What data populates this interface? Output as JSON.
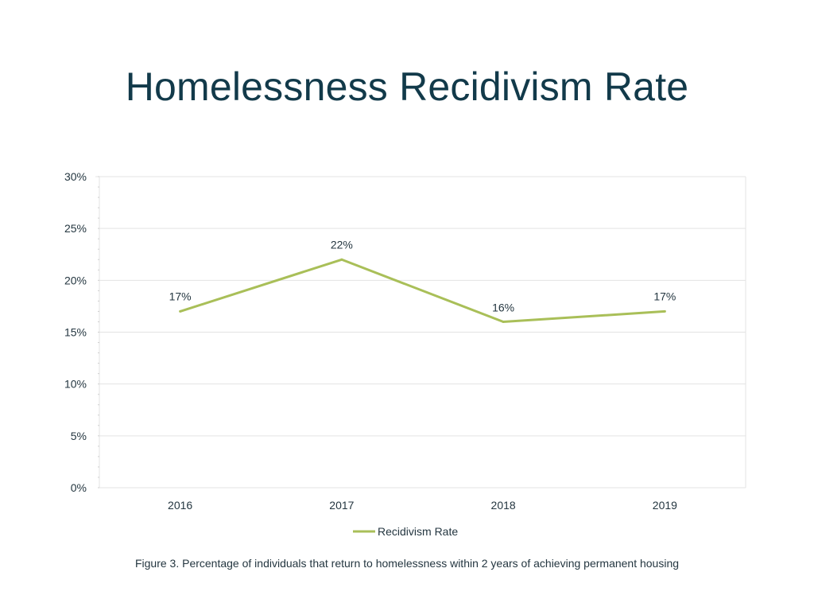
{
  "slide": {
    "title": "Homelessness Recidivism Rate",
    "caption": "Figure 3.  Percentage of individuals that return to homelessness within 2 years of achieving permanent housing"
  },
  "chart_data": {
    "type": "line",
    "categories": [
      "2016",
      "2017",
      "2018",
      "2019"
    ],
    "series": [
      {
        "name": "Recidivism Rate",
        "values": [
          17,
          22,
          16,
          17
        ],
        "color": "#a9bf58"
      }
    ],
    "data_labels": [
      "17%",
      "22%",
      "16%",
      "17%"
    ],
    "ylim": [
      0,
      30
    ],
    "y_ticks": [
      0,
      5,
      10,
      15,
      20,
      25,
      30
    ],
    "y_tick_labels": [
      "0%",
      "5%",
      "10%",
      "15%",
      "20%",
      "25%",
      "30%"
    ],
    "grid": true,
    "legend": "bottom",
    "colors": {
      "text": "#243640",
      "grid": "#e3e3e3",
      "line": "#a9bf58"
    }
  }
}
